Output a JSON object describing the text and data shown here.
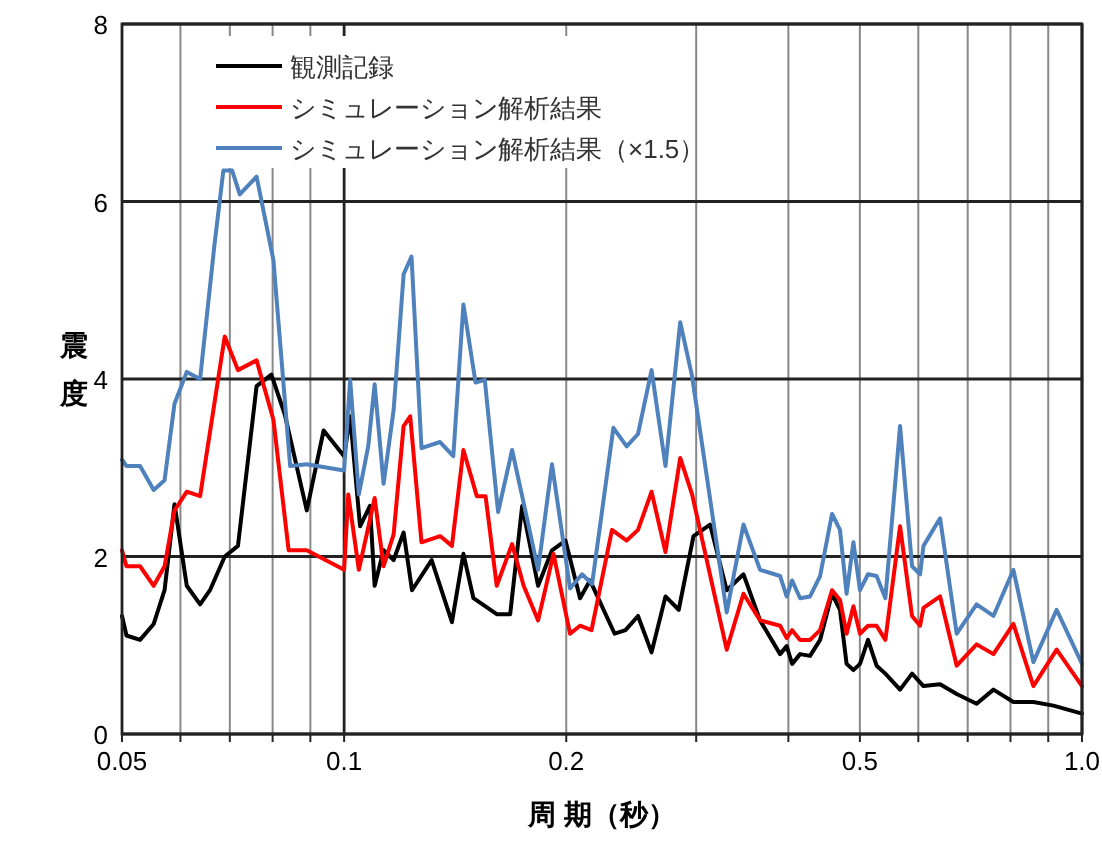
{
  "chart_data": {
    "type": "line",
    "xlabel": "周 期（秒）",
    "ylabel": "震度",
    "log": "x",
    "xlim": [
      0.05,
      1
    ],
    "ylim": [
      0,
      8
    ],
    "xticks": [
      0.05,
      {
        "value": 0.06,
        "label": null
      },
      {
        "value": 0.07,
        "label": null
      },
      {
        "value": 0.08,
        "label": null
      },
      {
        "value": 0.09,
        "label": null
      },
      0.1,
      0.2,
      {
        "value": 0.3,
        "label": null
      },
      {
        "value": 0.4,
        "label": null
      },
      0.5,
      {
        "value": 0.6,
        "label": null
      },
      {
        "value": 0.7,
        "label": null
      },
      {
        "value": 0.8,
        "label": null
      },
      {
        "value": 0.9,
        "label": null
      },
      {
        "value": 1,
        "label": "1.0"
      }
    ],
    "yticks": [
      0,
      2,
      4,
      6,
      8
    ],
    "grid": true,
    "legend": "top left",
    "marker": "none",
    "line_style": "solid",
    "series": [
      {
        "name": "観測記録",
        "color": "#000000",
        "x": [
          0.05,
          0.0507,
          0.0529,
          0.0552,
          0.0571,
          0.0589,
          0.0612,
          0.0638,
          0.0658,
          0.0689,
          0.0718,
          0.0761,
          0.0797,
          0.0831,
          0.089,
          0.0938,
          0.1,
          0.1019,
          0.1051,
          0.1084,
          0.11,
          0.1131,
          0.1167,
          0.1204,
          0.1236,
          0.1314,
          0.14,
          0.1451,
          0.1497,
          0.161,
          0.1679,
          0.1743,
          0.1832,
          0.1913,
          0.1995,
          0.2088,
          0.2154,
          0.2326,
          0.2406,
          0.2502,
          0.261,
          0.2726,
          0.2841,
          0.2975,
          0.3133,
          0.33,
          0.3477,
          0.3662,
          0.3898,
          0.3979,
          0.4047,
          0.4149,
          0.428,
          0.4416,
          0.4584,
          0.4699,
          0.4797,
          0.49,
          0.5002,
          0.5129,
          0.5268,
          0.5414,
          0.5668,
          0.5884,
          0.6098,
          0.6422,
          0.6764,
          0.7197,
          0.7586,
          0.8073,
          0.8593,
          0.9147,
          1.0
        ],
        "values": [
          1.33,
          1.11,
          1.06,
          1.24,
          1.62,
          2.59,
          1.67,
          1.46,
          1.62,
          2.0,
          2.12,
          3.92,
          4.05,
          3.6,
          2.52,
          3.42,
          3.13,
          3.58,
          2.34,
          2.57,
          1.67,
          2.07,
          1.96,
          2.27,
          1.62,
          1.96,
          1.26,
          2.03,
          1.53,
          1.35,
          1.35,
          2.57,
          1.67,
          2.07,
          2.18,
          1.53,
          1.73,
          1.13,
          1.17,
          1.33,
          0.92,
          1.55,
          1.4,
          2.23,
          2.36,
          1.62,
          1.8,
          1.28,
          0.9,
          0.99,
          0.79,
          0.9,
          0.88,
          1.06,
          1.58,
          1.4,
          0.79,
          0.72,
          0.79,
          1.06,
          0.77,
          0.68,
          0.5,
          0.68,
          0.54,
          0.56,
          0.45,
          0.34,
          0.5,
          0.36,
          0.36,
          0.32,
          0.23
        ]
      },
      {
        "name": "シミュレーション解析結果",
        "color": "#ff0000",
        "x": [
          0.05,
          0.0507,
          0.0529,
          0.0552,
          0.0571,
          0.0589,
          0.0612,
          0.0638,
          0.0689,
          0.0718,
          0.0761,
          0.0802,
          0.0841,
          0.089,
          0.1,
          0.1013,
          0.1047,
          0.1073,
          0.11,
          0.1131,
          0.1167,
          0.1204,
          0.1229,
          0.1273,
          0.1349,
          0.14,
          0.1451,
          0.1513,
          0.1555,
          0.161,
          0.1689,
          0.1751,
          0.1832,
          0.1922,
          0.2024,
          0.2088,
          0.2164,
          0.2307,
          0.2415,
          0.2502,
          0.261,
          0.2726,
          0.2854,
          0.2962,
          0.33,
          0.3477,
          0.3662,
          0.3898,
          0.3979,
          0.4047,
          0.4149,
          0.428,
          0.4416,
          0.4584,
          0.4699,
          0.4797,
          0.49,
          0.5002,
          0.5129,
          0.5268,
          0.5414,
          0.5668,
          0.5884,
          0.6033,
          0.6098,
          0.6422,
          0.6764,
          0.7197,
          0.7586,
          0.8073,
          0.8593,
          0.9239,
          1.0
        ],
        "values": [
          2.07,
          1.89,
          1.89,
          1.67,
          1.89,
          2.52,
          2.73,
          2.68,
          4.48,
          4.1,
          4.21,
          3.54,
          2.07,
          2.07,
          1.85,
          2.7,
          1.85,
          2.25,
          2.66,
          1.89,
          2.25,
          3.47,
          3.58,
          2.16,
          2.23,
          2.12,
          3.2,
          2.68,
          2.68,
          1.67,
          2.14,
          1.67,
          1.28,
          2.03,
          1.13,
          1.22,
          1.17,
          2.3,
          2.18,
          2.3,
          2.73,
          2.05,
          3.11,
          2.7,
          0.95,
          1.58,
          1.28,
          1.22,
          1.08,
          1.17,
          1.06,
          1.06,
          1.17,
          1.62,
          1.51,
          1.13,
          1.44,
          1.13,
          1.22,
          1.22,
          1.06,
          2.34,
          1.33,
          1.22,
          1.42,
          1.55,
          0.77,
          1.01,
          0.9,
          1.24,
          0.54,
          0.95,
          0.54
        ]
      },
      {
        "name": "シミュレーション解析結果（×1.5）",
        "color": "#4f81bd",
        "x": [
          0.05,
          0.0507,
          0.0529,
          0.0552,
          0.0571,
          0.0589,
          0.0612,
          0.0638,
          0.0667,
          0.0686,
          0.0705,
          0.0722,
          0.0761,
          0.0802,
          0.0845,
          0.089,
          0.1,
          0.1019,
          0.1047,
          0.1078,
          0.11,
          0.1131,
          0.1167,
          0.1204,
          0.1234,
          0.1273,
          0.1349,
          0.1406,
          0.1451,
          0.1507,
          0.1551,
          0.1617,
          0.1689,
          0.1762,
          0.1832,
          0.1913,
          0.2024,
          0.2101,
          0.2168,
          0.2317,
          0.2415,
          0.2502,
          0.261,
          0.2726,
          0.2854,
          0.2962,
          0.33,
          0.3477,
          0.3662,
          0.3898,
          0.3979,
          0.4047,
          0.4149,
          0.428,
          0.4416,
          0.4584,
          0.4699,
          0.4797,
          0.49,
          0.5002,
          0.5129,
          0.5268,
          0.5414,
          0.5668,
          0.5884,
          0.6033,
          0.6098,
          0.6422,
          0.6764,
          0.7197,
          0.7586,
          0.8073,
          0.8593,
          0.9239,
          1.0
        ],
        "values": [
          3.09,
          3.02,
          3.02,
          2.75,
          2.86,
          3.72,
          4.08,
          4.0,
          5.5,
          6.35,
          6.35,
          6.08,
          6.28,
          5.34,
          3.02,
          3.04,
          2.97,
          3.99,
          2.7,
          3.24,
          3.94,
          2.82,
          3.65,
          5.18,
          5.38,
          3.22,
          3.29,
          3.13,
          4.84,
          3.96,
          3.99,
          2.5,
          3.2,
          2.5,
          1.85,
          3.04,
          1.64,
          1.8,
          1.69,
          3.45,
          3.24,
          3.38,
          4.1,
          3.02,
          4.64,
          4.03,
          1.37,
          2.36,
          1.85,
          1.78,
          1.55,
          1.73,
          1.53,
          1.55,
          1.78,
          2.48,
          2.3,
          1.58,
          2.16,
          1.62,
          1.8,
          1.78,
          1.53,
          3.47,
          1.89,
          1.8,
          2.12,
          2.43,
          1.13,
          1.46,
          1.33,
          1.85,
          0.81,
          1.4,
          0.79
        ]
      }
    ]
  }
}
